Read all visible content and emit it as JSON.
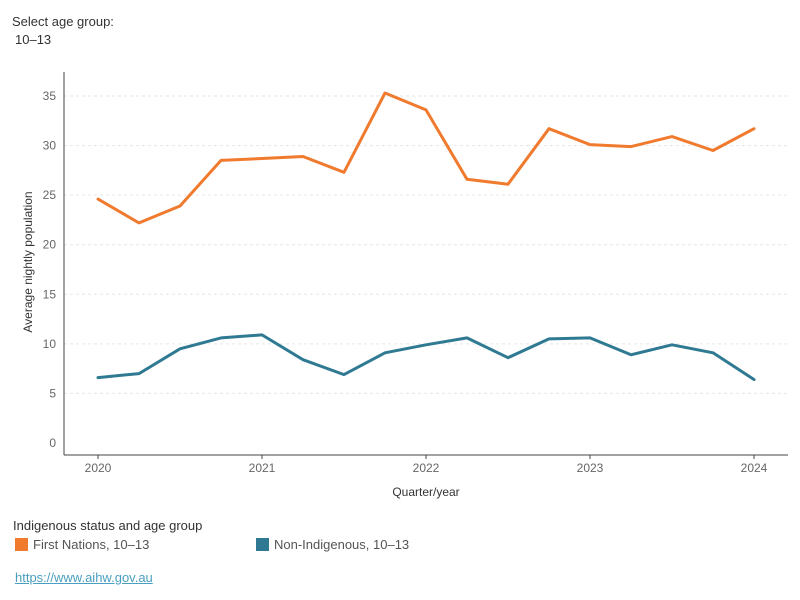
{
  "filter": {
    "label": "Select age group:",
    "value": "10–13"
  },
  "chart_data": {
    "type": "line",
    "xlabel": "Quarter/year",
    "ylabel": "Average nightly population",
    "ylim": [
      0,
      37
    ],
    "yticks": [
      0,
      5,
      10,
      15,
      20,
      25,
      30,
      35
    ],
    "xlim": [
      2020,
      2024
    ],
    "xticks": [
      "2020",
      "2021",
      "2022",
      "2023",
      "2024"
    ],
    "grid": "horizontal",
    "x": [
      2020.0,
      2020.25,
      2020.5,
      2020.75,
      2021.0,
      2021.25,
      2021.5,
      2021.75,
      2022.0,
      2022.25,
      2022.5,
      2022.75,
      2023.0,
      2023.25,
      2023.5,
      2023.75,
      2024.0
    ],
    "series": [
      {
        "name": "First Nations, 10–13",
        "color": "#f07a2e",
        "values": [
          24.6,
          22.2,
          23.9,
          28.5,
          28.7,
          28.9,
          27.3,
          35.3,
          33.6,
          26.6,
          26.1,
          31.7,
          30.1,
          29.9,
          30.9,
          29.5,
          31.7
        ]
      },
      {
        "name": "Non-Indigenous, 10–13",
        "color": "#2f7a92",
        "values": [
          6.6,
          7.0,
          9.5,
          10.6,
          10.9,
          8.4,
          6.9,
          9.1,
          9.9,
          10.6,
          8.6,
          10.5,
          10.6,
          8.9,
          9.9,
          9.1,
          6.4
        ]
      }
    ]
  },
  "legend": {
    "title": "Indigenous status and age group",
    "items": [
      "First Nations, 10–13",
      "Non-Indigenous, 10–13"
    ]
  },
  "source": {
    "link_text": "https://www.aihw.gov.au"
  }
}
